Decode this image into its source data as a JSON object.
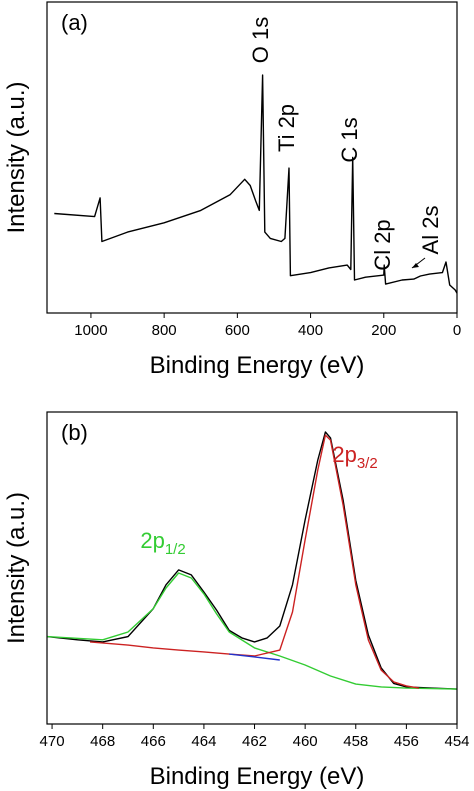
{
  "chart_data": [
    {
      "type": "line",
      "panel_label": "(a)",
      "xlabel": "Binding Energy (eV)",
      "ylabel": "Intensity (a.u.)",
      "xlim": [
        1120,
        0
      ],
      "ylim": [
        0,
        100
      ],
      "xticks": [
        1000,
        800,
        600,
        400,
        200,
        0
      ],
      "series": [
        {
          "color": "#000000",
          "x": [
            1100,
            990,
            975,
            970,
            900,
            800,
            700,
            620,
            580,
            565,
            550,
            540,
            531,
            525,
            510,
            480,
            470,
            459,
            455,
            400,
            350,
            300,
            290,
            285,
            280,
            250,
            200,
            199,
            195,
            150,
            118,
            100,
            75,
            40,
            30,
            20,
            5,
            0
          ],
          "values": [
            32,
            31,
            37,
            23,
            26,
            29,
            33,
            38,
            43,
            41,
            36,
            33,
            76.5,
            26,
            24,
            23,
            24,
            46.6,
            12,
            13,
            14.5,
            15.4,
            14,
            50,
            10.6,
            11.5,
            12.2,
            15.4,
            9.3,
            10.6,
            10.9,
            11.9,
            12.5,
            13,
            16.4,
            9,
            7.4,
            6.4
          ]
        }
      ],
      "annotations": [
        {
          "text": "O 1s"
        },
        {
          "text": "Ti 2p"
        },
        {
          "text": "C 1s"
        },
        {
          "text": "Cl 2p"
        },
        {
          "text": "Al 2s"
        }
      ]
    },
    {
      "type": "line",
      "panel_label": "(b)",
      "xlabel": "Binding Energy (eV)",
      "ylabel": "Intensity (a.u.)",
      "xlim": [
        470.2,
        454
      ],
      "ylim": [
        0,
        100
      ],
      "xticks": [
        470,
        468,
        466,
        464,
        462,
        460,
        458,
        456,
        454
      ],
      "series": [
        {
          "color": "#000000",
          "x": [
            470.2,
            469,
            468,
            467,
            466,
            465.5,
            465,
            464.5,
            464,
            463.5,
            463,
            462.5,
            462,
            461.5,
            461,
            460.5,
            460,
            459.5,
            459.2,
            459,
            458.5,
            458,
            457.5,
            457,
            456.5,
            456,
            455,
            454
          ],
          "values": [
            28,
            27,
            26.3,
            28,
            37,
            44.6,
            49.4,
            47.8,
            42.3,
            36.5,
            30,
            27.6,
            26.3,
            27.6,
            31.4,
            44.6,
            65.4,
            84.6,
            93.6,
            91.7,
            71.8,
            46,
            28.5,
            18,
            13,
            11.9,
            11.5,
            11.2
          ]
        },
        {
          "color": "#33cc33",
          "x": [
            470.2,
            468,
            467,
            466,
            465.5,
            465,
            464.5,
            464,
            463.5,
            463,
            462,
            461,
            460,
            459,
            458,
            457,
            456,
            454
          ],
          "values": [
            28,
            27,
            29.5,
            37,
            43.6,
            48.4,
            46.8,
            41.7,
            35.3,
            29.5,
            24.4,
            21.8,
            18.9,
            15.4,
            12.8,
            11.9,
            11.5,
            11.2
          ]
        },
        {
          "color": "#cc2222",
          "x": [
            468.5,
            467,
            466,
            465,
            464,
            463,
            462,
            461,
            460.5,
            460,
            459.5,
            459.2,
            459,
            458.5,
            458,
            457.5,
            457,
            456.5,
            456,
            455.5
          ],
          "values": [
            26.3,
            25.3,
            24.4,
            23.7,
            23.1,
            22.4,
            21.8,
            23.7,
            35.9,
            59,
            81.4,
            92.6,
            91,
            70.2,
            44.6,
            26.9,
            17.3,
            13.5,
            12.2,
            11.5
          ]
        },
        {
          "color": "#2233cc",
          "x": [
            463,
            462,
            461
          ],
          "values": [
            22.4,
            21.5,
            20.5
          ]
        }
      ],
      "annotations": [
        {
          "text": "2p",
          "sub": "1/2",
          "color": "#33cc33"
        },
        {
          "text": "2p",
          "sub": "3/2",
          "color": "#cc2222"
        }
      ]
    }
  ]
}
